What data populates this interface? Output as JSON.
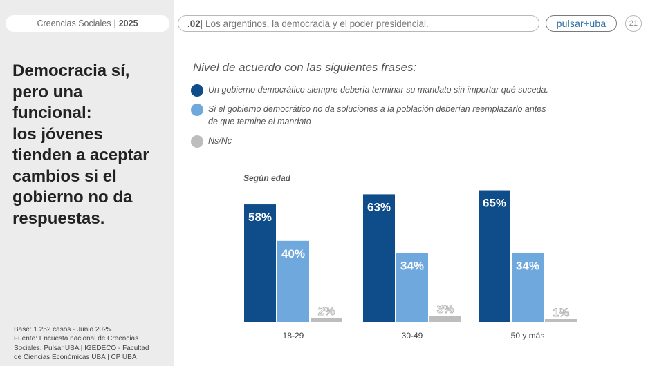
{
  "header": {
    "left_pill_text": "Creencias Sociales",
    "left_pill_sep": "|",
    "left_pill_year": "2025",
    "section_number": ".02",
    "section_title": "| Los argentinos, la democracia y el poder presidencial.",
    "logo_left": "pulsar",
    "logo_mark": "+",
    "logo_right": "uba",
    "page_number": "21"
  },
  "sidebar": {
    "headline_lines": [
      "Democracia sí,",
      "pero una",
      "funcional:",
      "los jóvenes",
      "tienden a aceptar",
      "cambios si el",
      "gobierno no da",
      "respuestas."
    ],
    "footnote_lines": [
      "Base: 1.252 casos - Junio 2025.",
      "Fuente: Encuesta nacional de Creencias",
      "Sociales. Pulsar.UBA | IGEDECO - Facultad",
      "de Ciencias Económicas UBA | CP UBA"
    ]
  },
  "main": {
    "subtitle": "Nivel de acuerdo con las siguientes frases:",
    "legend": [
      {
        "label": "Un gobierno democrático siempre debería terminar su mandato sin importar qué suceda.",
        "color": "#0f4c8a"
      },
      {
        "label": "Si el gobierno democrático no da soluciones a la población deberían reemplazarlo antes",
        "label_line2": "de que termine el mandato",
        "color": "#6fa8dc"
      },
      {
        "label": "Ns/Nc",
        "color": "#bdbdbd"
      }
    ]
  },
  "chart_data": {
    "type": "bar",
    "title": "Según edad",
    "categories": [
      "18-29",
      "30-49",
      "50 y más"
    ],
    "series": [
      {
        "name": "Un gobierno democrático siempre debería terminar su mandato sin importar qué suceda.",
        "color": "#0f4c8a",
        "values": [
          58,
          63,
          65
        ]
      },
      {
        "name": "Si el gobierno democrático no da soluciones a la población deberían reemplazarlo antes de que termine el mandato",
        "color": "#6fa8dc",
        "values": [
          40,
          34,
          34
        ]
      },
      {
        "name": "Ns/Nc",
        "color": "#bdbdbd",
        "values": [
          2,
          3,
          1
        ]
      }
    ],
    "value_labels": [
      [
        "58%",
        "63%",
        "65%"
      ],
      [
        "40%",
        "34%",
        "34%"
      ],
      [
        "2%",
        "3%",
        "1%"
      ]
    ],
    "ylim": [
      0,
      100
    ],
    "xlabel": "",
    "ylabel": ""
  }
}
